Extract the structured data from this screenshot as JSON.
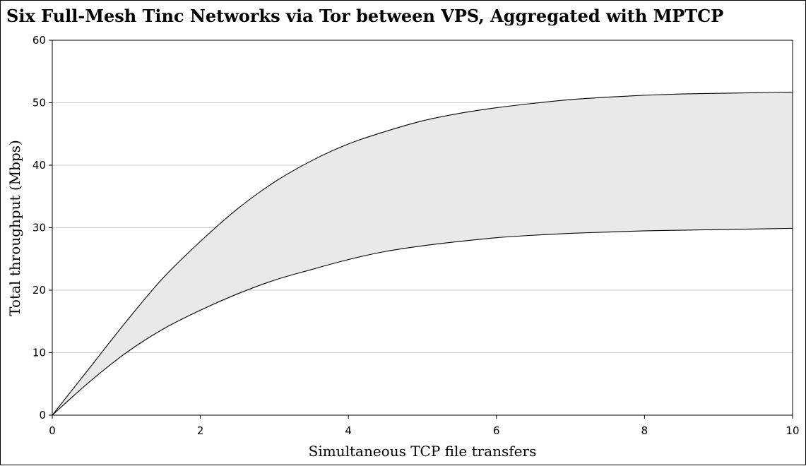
{
  "chart_data": {
    "type": "area",
    "title": "Six Full-Mesh Tinc Networks via Tor between VPS, Aggregated with MPTCP",
    "xlabel": "Simultaneous TCP file transfers",
    "ylabel": "Total throughput (Mbps)",
    "xlim": [
      0,
      10
    ],
    "ylim": [
      0,
      60
    ],
    "xticks": [
      "0",
      "2",
      "4",
      "6",
      "8",
      "10"
    ],
    "yticks": [
      "0",
      "10",
      "20",
      "30",
      "40",
      "50",
      "60"
    ],
    "grid": "horizontal",
    "x": [
      0,
      0.5,
      1,
      1.5,
      2,
      2.5,
      3,
      3.5,
      4,
      4.5,
      5,
      5.5,
      6,
      6.5,
      7,
      7.5,
      8,
      8.5,
      9,
      9.5,
      10
    ],
    "series": [
      {
        "values": [
          0,
          7.5,
          15,
          22,
          27.8,
          33,
          37.3,
          40.7,
          43.4,
          45.4,
          47.1,
          48.3,
          49.2,
          49.9,
          50.5,
          50.9,
          51.2,
          51.4,
          51.5,
          51.6,
          51.7
        ]
      },
      {
        "values": [
          0,
          5.3,
          10,
          13.8,
          16.8,
          19.4,
          21.6,
          23.3,
          24.9,
          26.2,
          27.1,
          27.8,
          28.4,
          28.8,
          29.1,
          29.3,
          29.5,
          29.6,
          29.7,
          29.8,
          29.9
        ]
      }
    ]
  }
}
